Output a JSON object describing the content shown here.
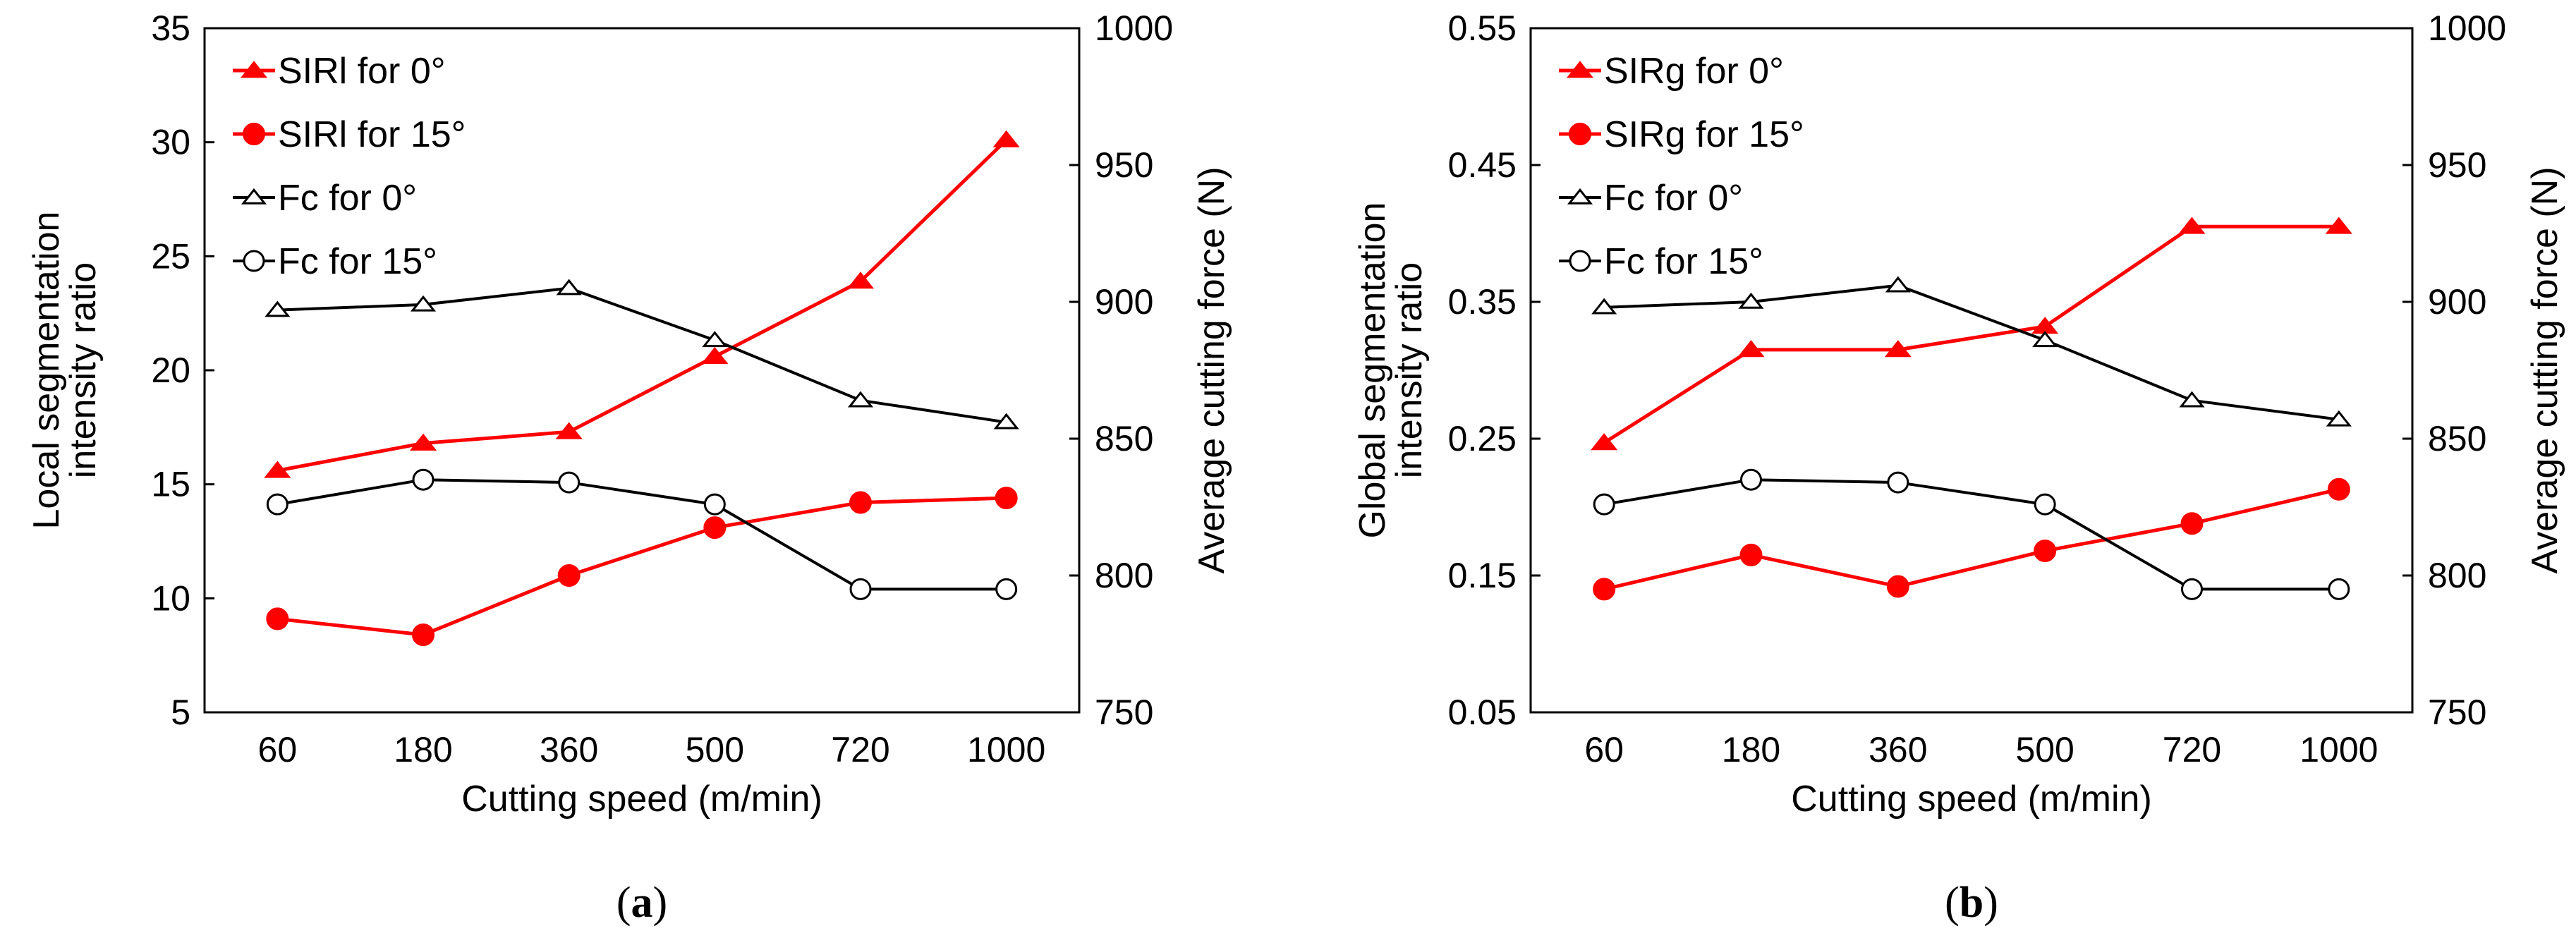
{
  "chart_data": [
    {
      "type": "line",
      "id": "a",
      "caption_open": "(",
      "caption_letter": "a",
      "caption_close": ")",
      "categories": [
        "60",
        "180",
        "360",
        "500",
        "720",
        "1000"
      ],
      "xlabel": "Cutting speed (m/min)",
      "ylabel_left": [
        "Local segmentation",
        "intensity ratio"
      ],
      "ylabel_right": "Average cutting force (N)",
      "ylim_left": [
        5,
        35
      ],
      "yticks_left": [
        "5",
        "10",
        "15",
        "20",
        "25",
        "30",
        "35"
      ],
      "ylim_right": [
        750,
        1000
      ],
      "yticks_right": [
        "750",
        "800",
        "850",
        "900",
        "950",
        "1000"
      ],
      "legend_position": "top-left",
      "series": [
        {
          "name": "SIRl for 0°",
          "axis": "left",
          "color": "#ff0000",
          "marker": "triangle-filled",
          "values": [
            15.6,
            16.8,
            17.3,
            20.6,
            23.9,
            30.1
          ]
        },
        {
          "name": "SIRl for 15°",
          "axis": "left",
          "color": "#ff0000",
          "marker": "circle-filled",
          "values": [
            9.1,
            8.4,
            11.0,
            13.1,
            14.2,
            14.4
          ]
        },
        {
          "name": "Fc for 0°",
          "axis": "right",
          "color": "#000000",
          "marker": "triangle-open",
          "values": [
            897,
            899,
            905,
            886,
            864,
            856
          ]
        },
        {
          "name": "Fc for 15°",
          "axis": "right",
          "color": "#000000",
          "marker": "circle-open",
          "values": [
            826,
            835,
            834,
            826,
            795,
            795
          ]
        }
      ]
    },
    {
      "type": "line",
      "id": "b",
      "caption_open": "(",
      "caption_letter": "b",
      "caption_close": ")",
      "categories": [
        "60",
        "180",
        "360",
        "500",
        "720",
        "1000"
      ],
      "xlabel": "Cutting speed (m/min)",
      "ylabel_left": [
        "Global segmentation",
        "intensity ratio"
      ],
      "ylabel_right": "Average cutting force (N)",
      "ylim_left": [
        0.05,
        0.55
      ],
      "yticks_left": [
        "0.05",
        "0.15",
        "0.25",
        "0.35",
        "0.45",
        "0.55"
      ],
      "ylim_right": [
        750,
        1000
      ],
      "yticks_right": [
        "750",
        "800",
        "850",
        "900",
        "950",
        "1000"
      ],
      "legend_position": "top-left",
      "series": [
        {
          "name": "SIRg for 0°",
          "axis": "left",
          "color": "#ff0000",
          "marker": "triangle-filled",
          "values": [
            0.247,
            0.315,
            0.315,
            0.332,
            0.405,
            0.405
          ]
        },
        {
          "name": "SIRg for 15°",
          "axis": "left",
          "color": "#ff0000",
          "marker": "circle-filled",
          "values": [
            0.14,
            0.165,
            0.142,
            0.168,
            0.188,
            0.213
          ]
        },
        {
          "name": "Fc for 0°",
          "axis": "right",
          "color": "#000000",
          "marker": "triangle-open",
          "values": [
            898,
            900,
            906,
            886,
            864,
            857
          ]
        },
        {
          "name": "Fc for 15°",
          "axis": "right",
          "color": "#000000",
          "marker": "circle-open",
          "values": [
            826,
            835,
            834,
            826,
            795,
            795
          ]
        }
      ]
    }
  ]
}
